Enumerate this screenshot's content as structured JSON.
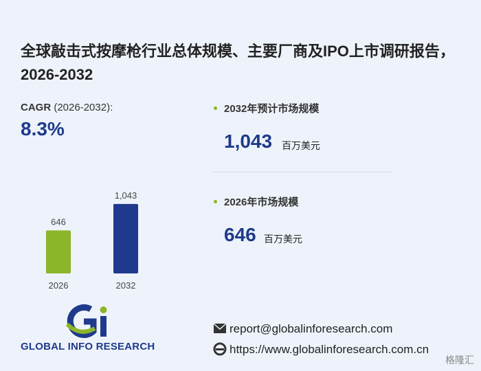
{
  "title": "全球敲击式按摩枪行业总体规模、主要厂商及IPO上市调研报告，2026-2032",
  "cagr": {
    "label": "CAGR",
    "period": "(2026-2032):",
    "value": "8.3%"
  },
  "stats": [
    {
      "label": "2032年预计市场规模",
      "value": "1,043",
      "unit": "百万美元"
    },
    {
      "label": "2026年市场规模",
      "value": "646",
      "unit": "百万美元"
    }
  ],
  "chart_data": {
    "type": "bar",
    "categories": [
      "2026",
      "2032"
    ],
    "values": [
      646,
      1043
    ],
    "value_labels": [
      "646",
      "1,043"
    ],
    "colors": [
      "#8db52a",
      "#1f3a8c"
    ]
  },
  "brand": "GLOBAL INFO RESEARCH",
  "contact": {
    "email": "report@globalinforesearch.com",
    "website": "https://www.globalinforesearch.com.cn"
  },
  "watermark": "格隆汇"
}
